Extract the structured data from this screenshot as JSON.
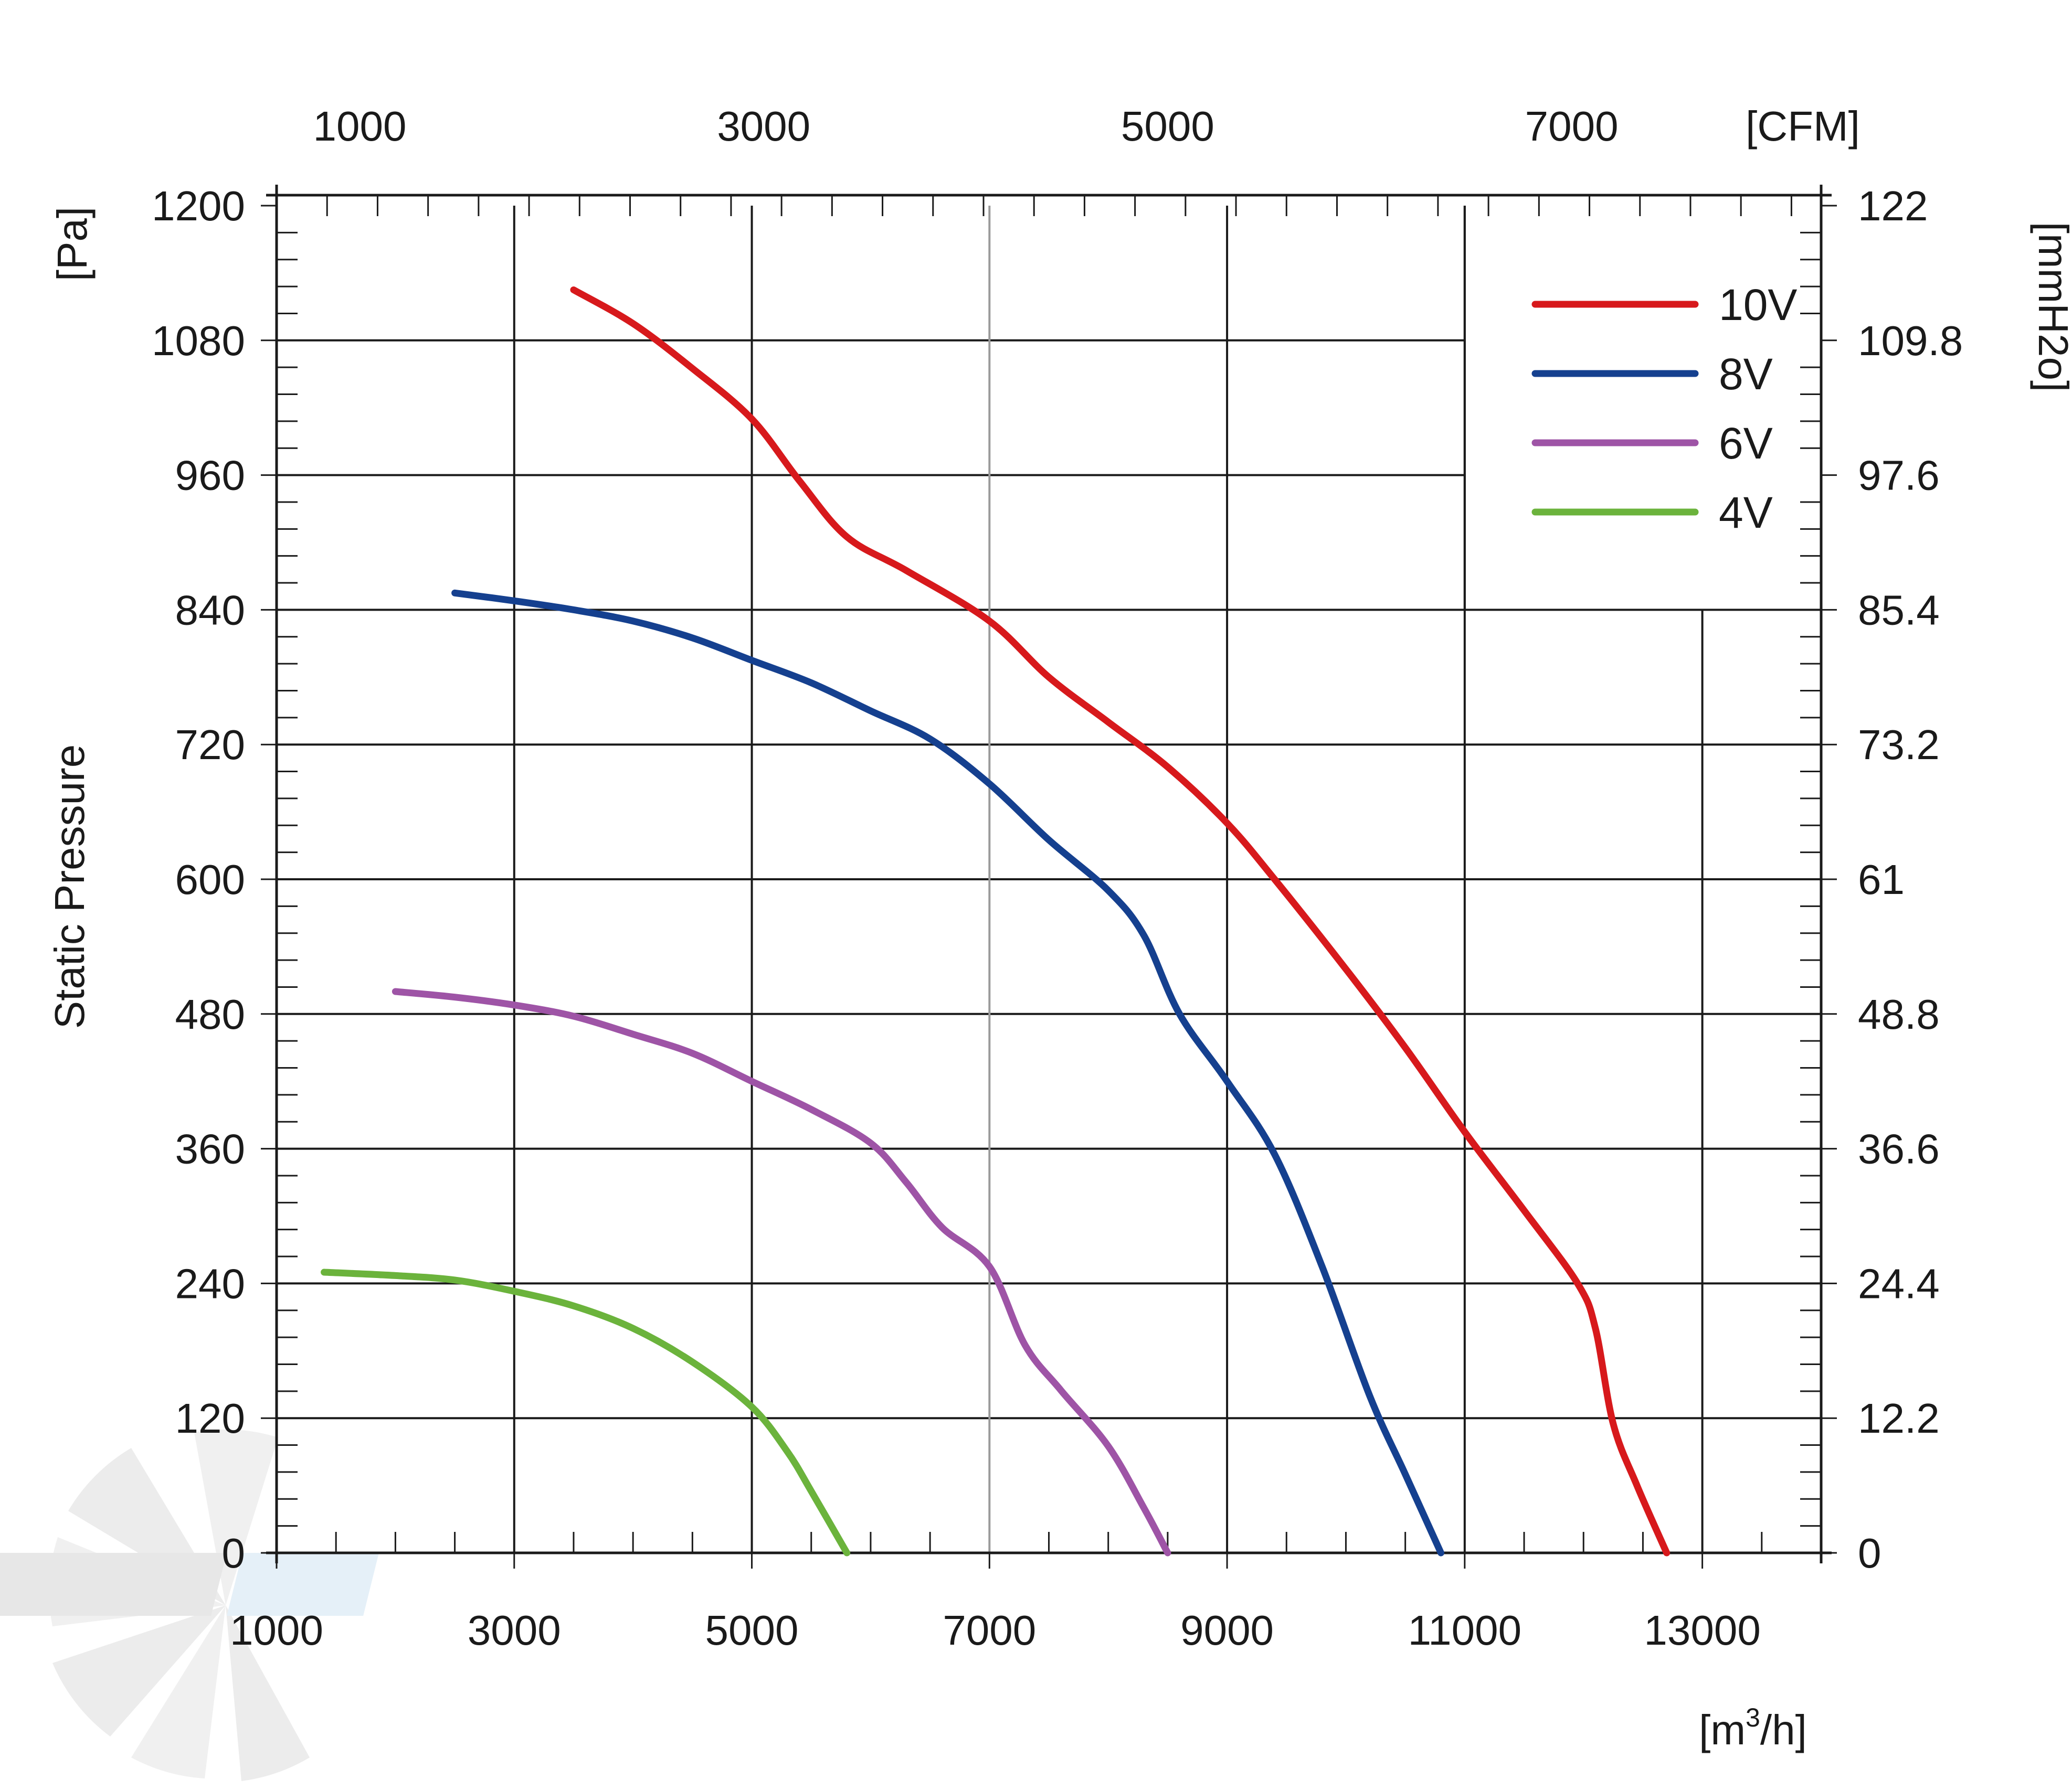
{
  "chart_data": {
    "type": "line",
    "ylabel": "Static Pressure",
    "y_unit_left": "[Pa]",
    "y_unit_right": "[mmH2o]",
    "x_unit_bottom_prefix": "[m",
    "x_unit_bottom_sup": "3",
    "x_unit_bottom_suffix": "/h]",
    "x_unit_top": "[CFM]",
    "xlim": [
      1000,
      14000
    ],
    "ylim": [
      0,
      1200
    ],
    "x_ticks": [
      1000,
      3000,
      5000,
      7000,
      9000,
      11000,
      13000
    ],
    "x_tick_labels": [
      "1000",
      "3000",
      "5000",
      "7000",
      "9000",
      "11000",
      "13000"
    ],
    "y_ticks": [
      0,
      120,
      240,
      360,
      480,
      600,
      720,
      840,
      960,
      1080,
      1200
    ],
    "y_tick_labels": [
      "0",
      "120",
      "240",
      "360",
      "480",
      "600",
      "720",
      "840",
      "960",
      "1080",
      "1200"
    ],
    "y_right_ticks": [
      0,
      120,
      240,
      360,
      480,
      600,
      720,
      840,
      960,
      1080,
      1200
    ],
    "y_right_tick_labels": [
      "0",
      "12.2",
      "24.4",
      "36.6",
      "48.8",
      "61",
      "73.2",
      "85.4",
      "97.6",
      "109.8",
      "122"
    ],
    "x_top_ticks": [
      1700,
      5100,
      8500,
      11900
    ],
    "x_top_tick_labels": [
      "1000",
      "3000",
      "5000",
      "7000"
    ],
    "grid": true,
    "legend_position": "top-right",
    "series": [
      {
        "name": "10V",
        "color": "#d7191c",
        "x": [
          3500,
          4000,
          4500,
          5000,
          5400,
          5800,
          6300,
          7000,
          7500,
          8000,
          8500,
          9000,
          9400,
          10000,
          10500,
          11000,
          11500,
          11950,
          12100,
          12250,
          12450,
          12700
        ],
        "y": [
          1125,
          1095,
          1055,
          1010,
          955,
          905,
          875,
          830,
          780,
          740,
          700,
          650,
          600,
          520,
          450,
          375,
          305,
          240,
          200,
          115,
          60,
          0
        ]
      },
      {
        "name": "8V",
        "color": "#15408f",
        "x": [
          2500,
          3000,
          3500,
          4000,
          4500,
          5000,
          5500,
          6000,
          6500,
          7000,
          7500,
          8000,
          8300,
          8600,
          9000,
          9400,
          9800,
          10200,
          10500,
          10800
        ],
        "y": [
          855,
          848,
          840,
          830,
          815,
          795,
          775,
          750,
          725,
          685,
          635,
          590,
          550,
          480,
          420,
          355,
          255,
          140,
          70,
          0
        ]
      },
      {
        "name": "6V",
        "color": "#9e54a6",
        "x": [
          2000,
          2500,
          3000,
          3500,
          4000,
          4500,
          5000,
          5500,
          6000,
          6300,
          6600,
          7000,
          7300,
          7600,
          8000,
          8300,
          8500
        ],
        "y": [
          500,
          495,
          488,
          478,
          462,
          445,
          420,
          395,
          365,
          330,
          290,
          255,
          185,
          145,
          95,
          40,
          0
        ]
      },
      {
        "name": "4V",
        "color": "#6bb33c",
        "x": [
          1400,
          2000,
          2500,
          3000,
          3500,
          4000,
          4500,
          5000,
          5300,
          5500,
          5800
        ],
        "y": [
          250,
          247,
          243,
          233,
          220,
          200,
          170,
          130,
          90,
          55,
          0
        ]
      }
    ]
  },
  "colors": {
    "grid_major": "#1a1a1a",
    "grid_minor_light": "#9a9a9a",
    "watermark_gray": "#d9d9d9",
    "watermark_blue": "#cfe3f3"
  }
}
